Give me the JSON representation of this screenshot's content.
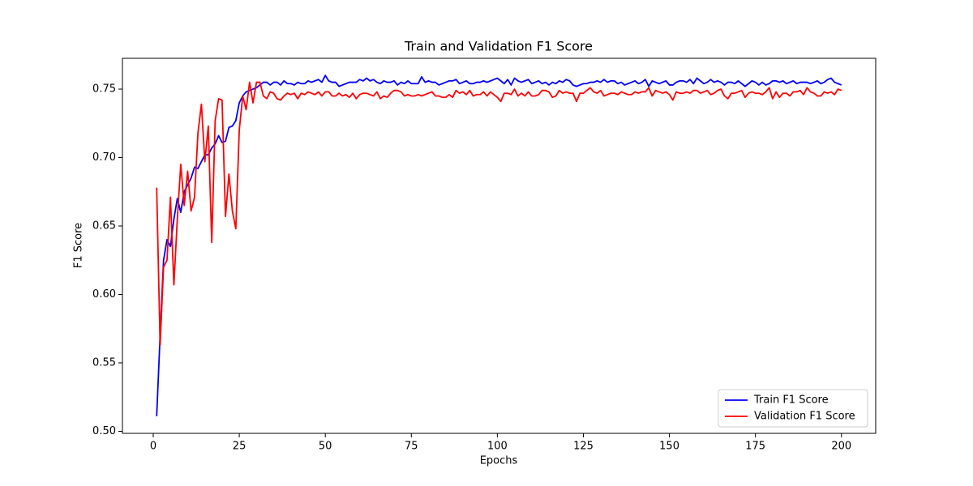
{
  "chart_data": {
    "type": "line",
    "title": "Train and Validation F1 Score",
    "x_label": "Epochs",
    "y_label": "F1 Score",
    "x": [
      1,
      2,
      3,
      4,
      5,
      6,
      7,
      8,
      9,
      10,
      11,
      12,
      13,
      14,
      15,
      16,
      17,
      18,
      19,
      20,
      21,
      22,
      23,
      24,
      25,
      26,
      27,
      28,
      29,
      30,
      31,
      32,
      33,
      34,
      35,
      36,
      37,
      38,
      39,
      40,
      41,
      42,
      43,
      44,
      45,
      46,
      47,
      48,
      49,
      50,
      51,
      52,
      53,
      54,
      55,
      56,
      57,
      58,
      59,
      60,
      61,
      62,
      63,
      64,
      65,
      66,
      67,
      68,
      69,
      70,
      71,
      72,
      73,
      74,
      75,
      76,
      77,
      78,
      79,
      80,
      81,
      82,
      83,
      84,
      85,
      86,
      87,
      88,
      89,
      90,
      91,
      92,
      93,
      94,
      95,
      96,
      97,
      98,
      99,
      100,
      101,
      102,
      103,
      104,
      105,
      106,
      107,
      108,
      109,
      110,
      111,
      112,
      113,
      114,
      115,
      116,
      117,
      118,
      119,
      120,
      121,
      122,
      123,
      124,
      125,
      126,
      127,
      128,
      129,
      130,
      131,
      132,
      133,
      134,
      135,
      136,
      137,
      138,
      139,
      140,
      141,
      142,
      143,
      144,
      145,
      146,
      147,
      148,
      149,
      150,
      151,
      152,
      153,
      154,
      155,
      156,
      157,
      158,
      159,
      160,
      161,
      162,
      163,
      164,
      165,
      166,
      167,
      168,
      169,
      170,
      171,
      172,
      173,
      174,
      175,
      176,
      177,
      178,
      179,
      180,
      181,
      182,
      183,
      184,
      185,
      186,
      187,
      188,
      189,
      190,
      191,
      192,
      193,
      194,
      195,
      196,
      197,
      198,
      199,
      200
    ],
    "series": [
      {
        "name": "Train F1 Score",
        "color": "#0000ff",
        "values": [
          0.511,
          0.57,
          0.625,
          0.64,
          0.635,
          0.655,
          0.67,
          0.66,
          0.675,
          0.68,
          0.685,
          0.693,
          0.692,
          0.697,
          0.702,
          0.702,
          0.707,
          0.71,
          0.716,
          0.711,
          0.712,
          0.722,
          0.723,
          0.727,
          0.74,
          0.745,
          0.748,
          0.749,
          0.75,
          0.751,
          0.753,
          0.755,
          0.755,
          0.753,
          0.755,
          0.755,
          0.753,
          0.756,
          0.754,
          0.754,
          0.753,
          0.755,
          0.754,
          0.754,
          0.756,
          0.755,
          0.756,
          0.757,
          0.755,
          0.76,
          0.756,
          0.755,
          0.755,
          0.752,
          0.753,
          0.754,
          0.755,
          0.755,
          0.755,
          0.757,
          0.756,
          0.758,
          0.756,
          0.757,
          0.755,
          0.754,
          0.756,
          0.755,
          0.755,
          0.756,
          0.753,
          0.755,
          0.754,
          0.756,
          0.754,
          0.754,
          0.754,
          0.759,
          0.755,
          0.756,
          0.755,
          0.755,
          0.753,
          0.754,
          0.755,
          0.756,
          0.756,
          0.757,
          0.754,
          0.755,
          0.756,
          0.754,
          0.754,
          0.755,
          0.755,
          0.756,
          0.755,
          0.756,
          0.757,
          0.758,
          0.756,
          0.754,
          0.757,
          0.753,
          0.758,
          0.756,
          0.755,
          0.756,
          0.757,
          0.754,
          0.755,
          0.756,
          0.754,
          0.755,
          0.753,
          0.755,
          0.754,
          0.756,
          0.755,
          0.757,
          0.756,
          0.753,
          0.752,
          0.753,
          0.754,
          0.754,
          0.755,
          0.755,
          0.756,
          0.755,
          0.757,
          0.755,
          0.756,
          0.756,
          0.754,
          0.755,
          0.753,
          0.754,
          0.755,
          0.756,
          0.754,
          0.755,
          0.757,
          0.752,
          0.756,
          0.755,
          0.754,
          0.755,
          0.756,
          0.753,
          0.753,
          0.755,
          0.756,
          0.756,
          0.755,
          0.757,
          0.754,
          0.758,
          0.756,
          0.754,
          0.755,
          0.757,
          0.755,
          0.756,
          0.755,
          0.753,
          0.755,
          0.755,
          0.754,
          0.756,
          0.754,
          0.752,
          0.754,
          0.756,
          0.755,
          0.753,
          0.755,
          0.753,
          0.754,
          0.756,
          0.756,
          0.755,
          0.756,
          0.754,
          0.755,
          0.756,
          0.754,
          0.755,
          0.755,
          0.755,
          0.754,
          0.755,
          0.756,
          0.754,
          0.755,
          0.757,
          0.758,
          0.755,
          0.754,
          0.753
        ]
      },
      {
        "name": "Validation F1 Score",
        "color": "#ff0000",
        "values": [
          0.678,
          0.563,
          0.62,
          0.625,
          0.671,
          0.607,
          0.655,
          0.695,
          0.665,
          0.69,
          0.661,
          0.671,
          0.718,
          0.739,
          0.697,
          0.723,
          0.638,
          0.727,
          0.743,
          0.742,
          0.657,
          0.688,
          0.661,
          0.648,
          0.72,
          0.745,
          0.735,
          0.755,
          0.74,
          0.755,
          0.755,
          0.745,
          0.743,
          0.748,
          0.747,
          0.743,
          0.742,
          0.745,
          0.747,
          0.746,
          0.747,
          0.743,
          0.747,
          0.746,
          0.748,
          0.747,
          0.746,
          0.748,
          0.745,
          0.748,
          0.748,
          0.745,
          0.745,
          0.747,
          0.745,
          0.746,
          0.744,
          0.747,
          0.743,
          0.746,
          0.747,
          0.747,
          0.746,
          0.745,
          0.748,
          0.743,
          0.745,
          0.744,
          0.747,
          0.749,
          0.749,
          0.748,
          0.745,
          0.746,
          0.745,
          0.745,
          0.746,
          0.745,
          0.746,
          0.747,
          0.748,
          0.745,
          0.745,
          0.744,
          0.744,
          0.746,
          0.744,
          0.749,
          0.747,
          0.748,
          0.746,
          0.749,
          0.745,
          0.746,
          0.746,
          0.748,
          0.745,
          0.748,
          0.746,
          0.744,
          0.741,
          0.747,
          0.747,
          0.746,
          0.75,
          0.745,
          0.747,
          0.745,
          0.748,
          0.745,
          0.745,
          0.746,
          0.749,
          0.749,
          0.748,
          0.744,
          0.745,
          0.749,
          0.747,
          0.748,
          0.747,
          0.747,
          0.741,
          0.747,
          0.747,
          0.749,
          0.751,
          0.748,
          0.747,
          0.749,
          0.745,
          0.746,
          0.747,
          0.747,
          0.746,
          0.748,
          0.747,
          0.746,
          0.746,
          0.748,
          0.747,
          0.748,
          0.748,
          0.751,
          0.745,
          0.749,
          0.748,
          0.747,
          0.748,
          0.746,
          0.742,
          0.748,
          0.747,
          0.747,
          0.748,
          0.747,
          0.749,
          0.749,
          0.747,
          0.748,
          0.749,
          0.746,
          0.747,
          0.749,
          0.75,
          0.745,
          0.743,
          0.747,
          0.747,
          0.748,
          0.749,
          0.744,
          0.747,
          0.748,
          0.747,
          0.747,
          0.746,
          0.748,
          0.751,
          0.743,
          0.748,
          0.744,
          0.747,
          0.747,
          0.745,
          0.748,
          0.748,
          0.749,
          0.746,
          0.751,
          0.748,
          0.747,
          0.745,
          0.745,
          0.748,
          0.747,
          0.748,
          0.746,
          0.75,
          0.749
        ]
      }
    ],
    "xlim": [
      -8.95,
      209.95
    ],
    "xticks": [
      0,
      25,
      50,
      75,
      100,
      125,
      150,
      175,
      200
    ],
    "ylim": [
      0.4985,
      0.7725
    ],
    "yticks": [
      {
        "value": 0.5,
        "label": "0.50"
      },
      0.55,
      {
        "value": 0.6,
        "label": "0.60"
      },
      0.65,
      {
        "value": 0.7,
        "label": "0.70"
      },
      0.75
    ],
    "grid": false,
    "legend": "lower right"
  }
}
